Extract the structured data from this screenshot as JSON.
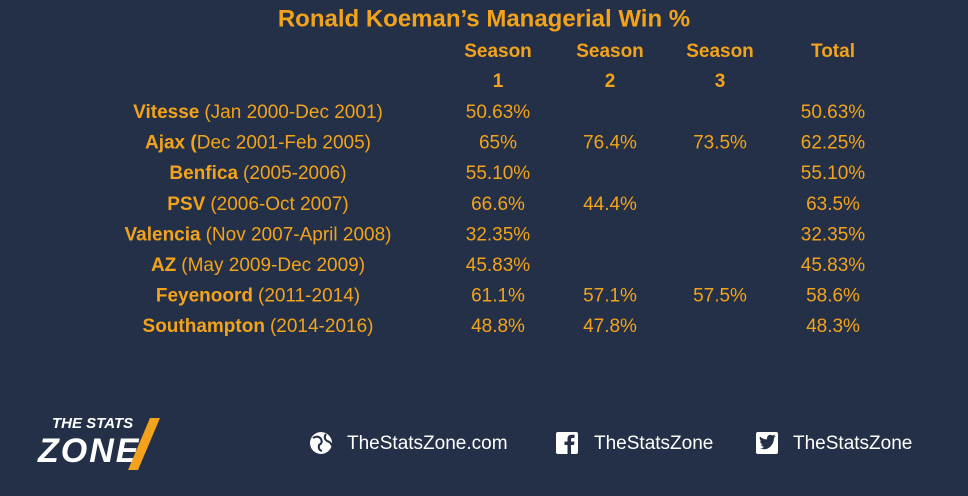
{
  "title": "Ronald Koeman’s Managerial Win %",
  "table": {
    "header": [
      [
        "Season",
        "1"
      ],
      [
        "Season",
        "2"
      ],
      [
        "Season",
        "3"
      ],
      [
        "Total"
      ]
    ],
    "rows": [
      {
        "club": "Vitesse",
        "period": "(Jan 2000-Dec 2001)",
        "cells": [
          "50.63%",
          null,
          null,
          "50.63%"
        ]
      },
      {
        "club": "Ajax (",
        "period": "Dec 2001-Feb 2005)",
        "cells": [
          "65%",
          "76.4%",
          "73.5%",
          "62.25%"
        ]
      },
      {
        "club": "Benfica",
        "period": "(2005-2006)",
        "cells": [
          "55.10%",
          null,
          null,
          "55.10%"
        ]
      },
      {
        "club": "PSV",
        "period": "(2006-Oct 2007)",
        "cells": [
          "66.6%",
          "44.4%",
          null,
          "63.5%"
        ]
      },
      {
        "club": "Valencia",
        "period": "(Nov 2007-April 2008)",
        "cells": [
          "32.35%",
          null,
          null,
          "32.35%"
        ]
      },
      {
        "club": "AZ",
        "period": "(May 2009-Dec 2009)",
        "cells": [
          "45.83%",
          null,
          null,
          "45.83%"
        ]
      },
      {
        "club": "Feyenoord",
        "period": "(2011-2014)",
        "cells": [
          "61.1%",
          "57.1%",
          "57.5%",
          "58.6%"
        ]
      },
      {
        "club": "Southampton",
        "period": "(2014-2016)",
        "cells": [
          "48.8%",
          "47.8%",
          null,
          "48.3%"
        ]
      }
    ]
  },
  "footer": {
    "logo": [
      "THE STATS",
      "ZONE"
    ],
    "website": "TheStatsZone.com",
    "facebook": "TheStatsZone",
    "twitter": "TheStatsZone"
  }
}
